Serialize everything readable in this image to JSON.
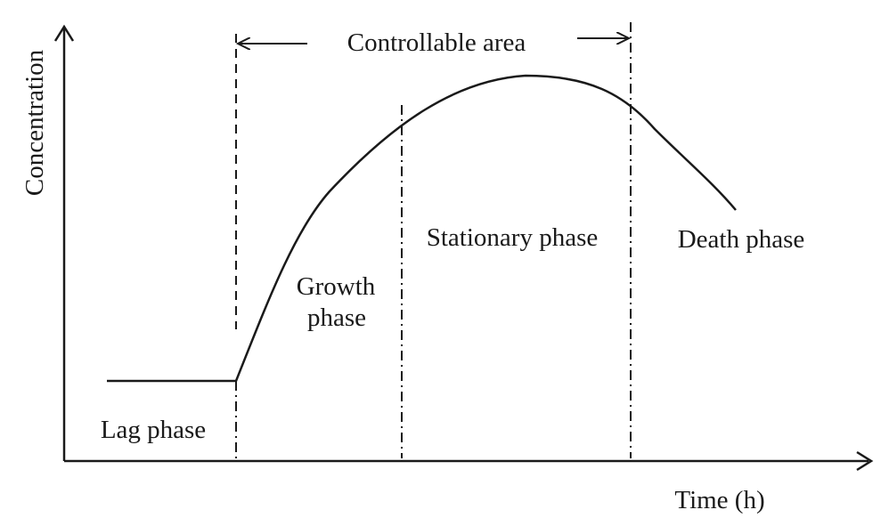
{
  "diagram": {
    "y_axis_label": "Concentration",
    "x_axis_label": "Time (h)",
    "top_annotation": "Controllable area",
    "phases": {
      "lag": "Lag phase",
      "growth_line1": "Growth",
      "growth_line2": "phase",
      "stationary": "Stationary phase",
      "death": "Death phase"
    }
  }
}
